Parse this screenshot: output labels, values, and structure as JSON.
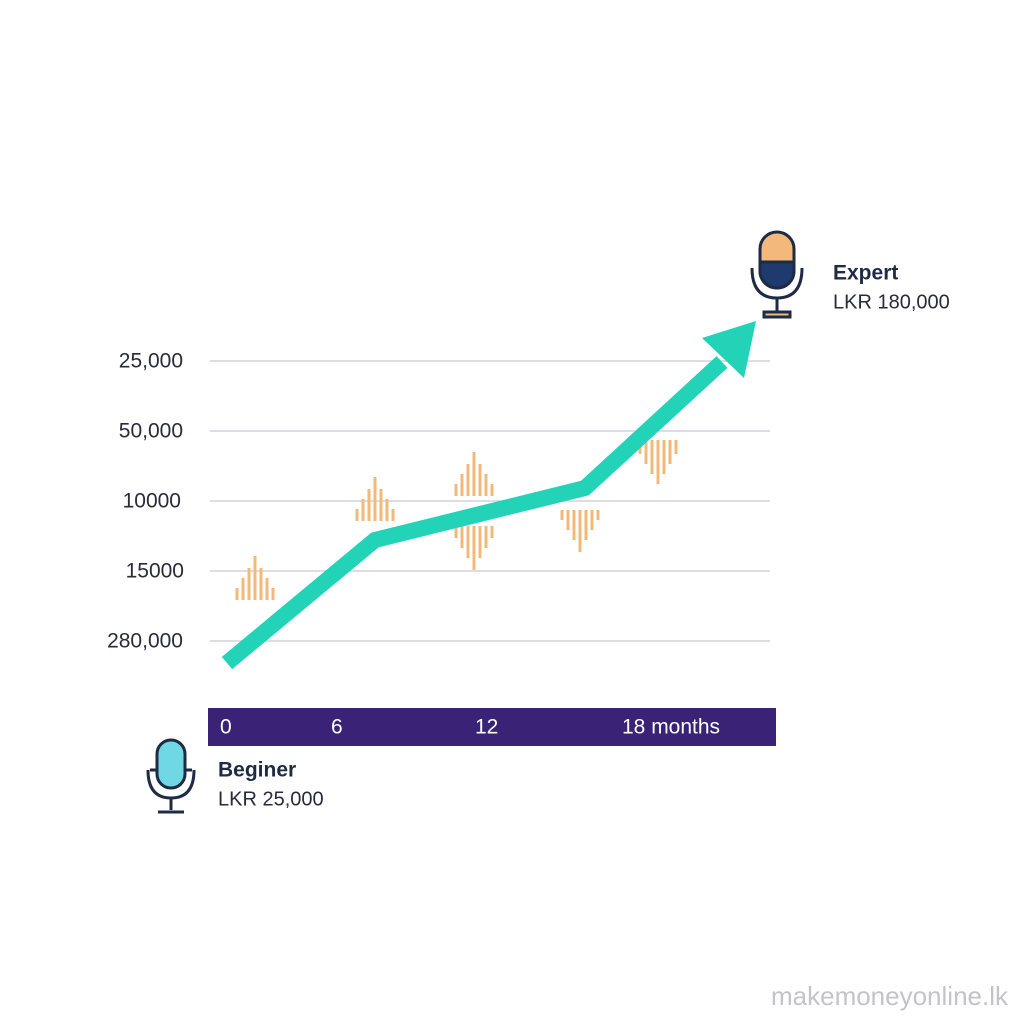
{
  "y_labels": [
    "25,000",
    "50,000",
    "10000",
    "15000",
    "280,000"
  ],
  "x_labels": [
    "0",
    "6",
    "12",
    "18 months"
  ],
  "beginner": {
    "title": "Beginer",
    "amount": "LKR 25,000"
  },
  "expert": {
    "title": "Expert",
    "amount": "LKR 180,000"
  },
  "watermark": "makemoneyonline.lk"
}
